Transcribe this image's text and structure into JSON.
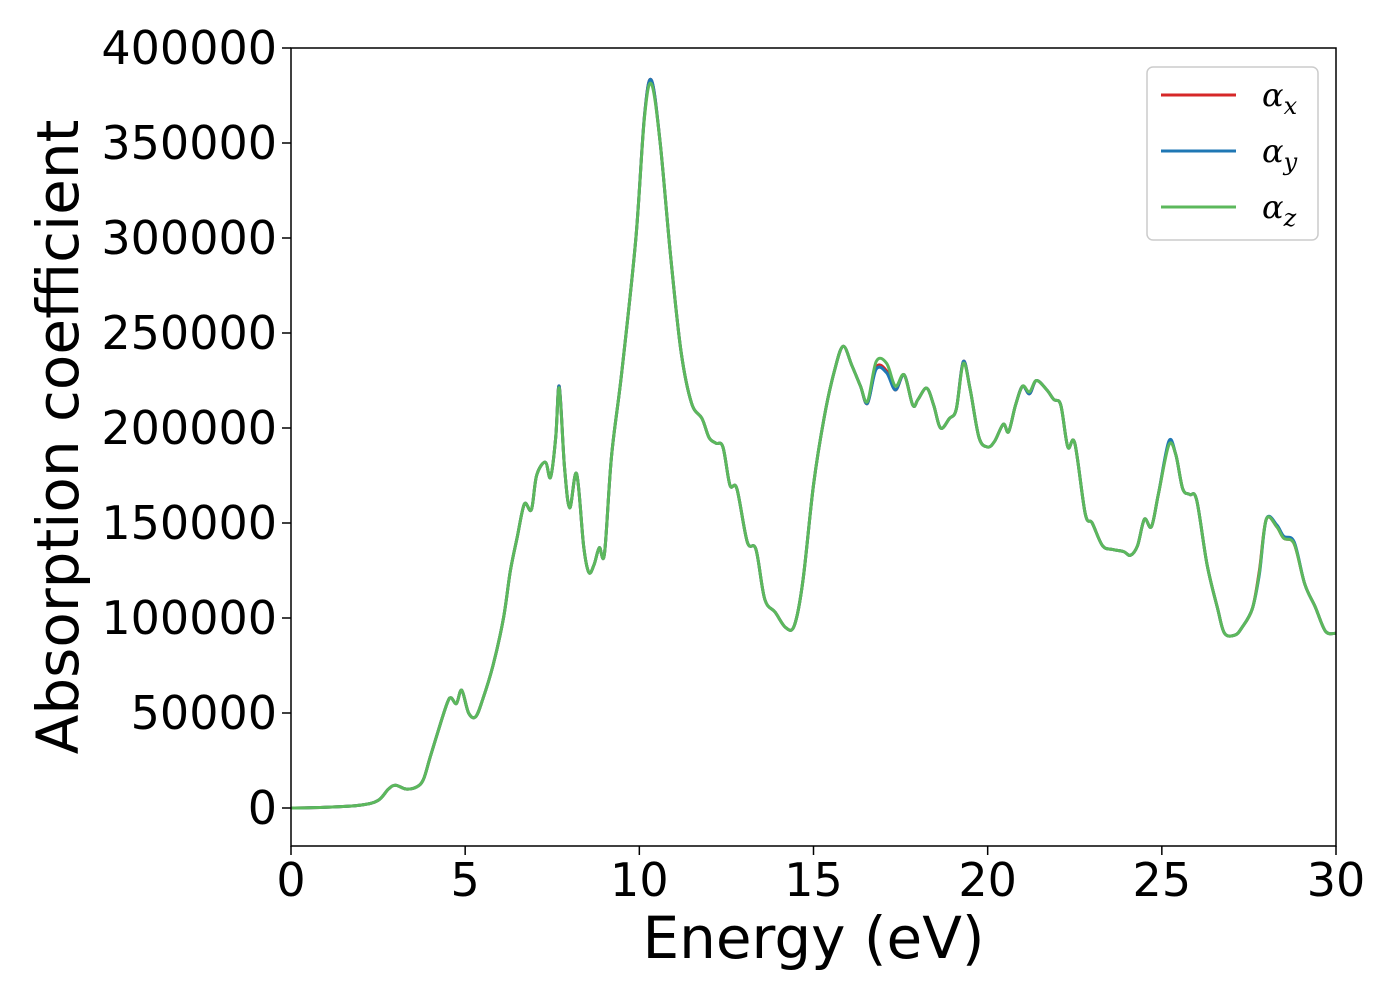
{
  "chart_data": {
    "type": "line",
    "xlabel": "Energy (eV)",
    "ylabel": "Absorption coefficient",
    "xlim": [
      0,
      30
    ],
    "ylim": [
      -20000,
      400000
    ],
    "xticks": [
      "0",
      "5",
      "10",
      "15",
      "20",
      "25",
      "30"
    ],
    "yticks": [
      "0",
      "50000",
      "100000",
      "150000",
      "200000",
      "250000",
      "300000",
      "350000",
      "400000"
    ],
    "grid": false,
    "legend": {
      "position": "top-right"
    },
    "series": [
      {
        "name": "α_x",
        "label_base": "α",
        "label_sub": "x",
        "color": "#d62728",
        "x": [
          0,
          1,
          2,
          2.5,
          2.8,
          3.0,
          3.3,
          3.6,
          3.8,
          4.0,
          4.3,
          4.5,
          4.6,
          4.75,
          4.9,
          5.1,
          5.3,
          5.5,
          5.8,
          6.1,
          6.3,
          6.5,
          6.7,
          6.9,
          7.05,
          7.3,
          7.45,
          7.6,
          7.7,
          7.85,
          8.0,
          8.2,
          8.4,
          8.55,
          8.7,
          8.85,
          9.0,
          9.2,
          9.5,
          9.9,
          10.15,
          10.35,
          10.6,
          10.9,
          11.2,
          11.5,
          11.8,
          12.0,
          12.2,
          12.4,
          12.6,
          12.8,
          13.1,
          13.35,
          13.6,
          13.9,
          14.2,
          14.45,
          14.7,
          15.0,
          15.3,
          15.6,
          15.85,
          16.1,
          16.35,
          16.55,
          16.8,
          17.1,
          17.35,
          17.6,
          17.85,
          18.0,
          18.25,
          18.45,
          18.65,
          18.9,
          19.1,
          19.3,
          19.5,
          19.75,
          20.0,
          20.2,
          20.45,
          20.6,
          20.8,
          21.0,
          21.2,
          21.4,
          21.7,
          21.9,
          22.1,
          22.3,
          22.5,
          22.8,
          23.0,
          23.3,
          23.6,
          23.9,
          24.1,
          24.3,
          24.5,
          24.7,
          24.9,
          25.2,
          25.4,
          25.6,
          25.8,
          26.0,
          26.3,
          26.6,
          26.8,
          27.1,
          27.3,
          27.6,
          27.8,
          28.0,
          28.3,
          28.5,
          28.8,
          29.1,
          29.4,
          29.7,
          30.0
        ],
        "y": [
          0,
          400,
          1500,
          4000,
          10000,
          12000,
          10000,
          11000,
          15000,
          27000,
          45000,
          56000,
          58000,
          55000,
          62000,
          50000,
          48000,
          57000,
          75000,
          100000,
          125000,
          143000,
          160000,
          157000,
          175000,
          182000,
          174000,
          195000,
          222000,
          180000,
          158000,
          176000,
          138000,
          124000,
          128000,
          137000,
          134000,
          185000,
          230000,
          300000,
          365000,
          383000,
          350000,
          290000,
          240000,
          213000,
          205000,
          195000,
          192000,
          190000,
          170000,
          168000,
          140000,
          136000,
          110000,
          103000,
          95000,
          96000,
          120000,
          170000,
          205000,
          230000,
          243000,
          233000,
          222000,
          213000,
          232000,
          230000,
          220000,
          228000,
          212000,
          215000,
          221000,
          212000,
          200000,
          205000,
          210000,
          235000,
          220000,
          195000,
          190000,
          193000,
          202000,
          198000,
          212000,
          222000,
          218000,
          225000,
          220000,
          215000,
          212000,
          190000,
          192000,
          155000,
          150000,
          138000,
          136000,
          135000,
          133000,
          138000,
          152000,
          148000,
          165000,
          192000,
          186000,
          168000,
          165000,
          162000,
          128000,
          105000,
          92000,
          91000,
          95000,
          105000,
          125000,
          152000,
          148000,
          142000,
          139000,
          118000,
          106000,
          93000,
          92000
        ]
      },
      {
        "name": "α_y",
        "label_base": "α",
        "label_sub": "y",
        "color": "#1f77b4",
        "x": [
          0,
          1,
          2,
          2.5,
          2.8,
          3.0,
          3.3,
          3.6,
          3.8,
          4.0,
          4.3,
          4.5,
          4.6,
          4.75,
          4.9,
          5.1,
          5.3,
          5.5,
          5.8,
          6.1,
          6.3,
          6.5,
          6.7,
          6.9,
          7.05,
          7.3,
          7.45,
          7.6,
          7.7,
          7.85,
          8.0,
          8.2,
          8.4,
          8.55,
          8.7,
          8.85,
          9.0,
          9.2,
          9.5,
          9.9,
          10.15,
          10.35,
          10.6,
          10.9,
          11.2,
          11.5,
          11.8,
          12.0,
          12.2,
          12.4,
          12.6,
          12.8,
          13.1,
          13.35,
          13.6,
          13.9,
          14.2,
          14.45,
          14.7,
          15.0,
          15.3,
          15.6,
          15.85,
          16.1,
          16.35,
          16.55,
          16.8,
          17.1,
          17.35,
          17.6,
          17.85,
          18.0,
          18.25,
          18.45,
          18.65,
          18.9,
          19.1,
          19.3,
          19.5,
          19.75,
          20.0,
          20.2,
          20.45,
          20.6,
          20.8,
          21.0,
          21.2,
          21.4,
          21.7,
          21.9,
          22.1,
          22.3,
          22.5,
          22.8,
          23.0,
          23.3,
          23.6,
          23.9,
          24.1,
          24.3,
          24.5,
          24.7,
          24.9,
          25.2,
          25.4,
          25.6,
          25.8,
          26.0,
          26.3,
          26.6,
          26.8,
          27.1,
          27.3,
          27.6,
          27.8,
          28.0,
          28.3,
          28.5,
          28.8,
          29.1,
          29.4,
          29.7,
          30.0
        ],
        "y": [
          0,
          400,
          1500,
          4000,
          10000,
          12000,
          10000,
          11000,
          15000,
          27000,
          45000,
          56000,
          58000,
          55000,
          62000,
          50000,
          48000,
          57000,
          75000,
          100000,
          125000,
          143000,
          160000,
          157000,
          175000,
          182000,
          174000,
          195000,
          222000,
          180000,
          158000,
          176000,
          138000,
          124000,
          128000,
          137000,
          134000,
          185000,
          230000,
          300000,
          365000,
          383000,
          350000,
          290000,
          240000,
          213000,
          205000,
          195000,
          192000,
          190000,
          170000,
          168000,
          140000,
          136000,
          110000,
          103000,
          95000,
          96000,
          120000,
          170000,
          205000,
          230000,
          243000,
          233000,
          222000,
          213000,
          231000,
          229000,
          220000,
          228000,
          212000,
          215000,
          221000,
          212000,
          200000,
          205000,
          210000,
          235000,
          220000,
          195000,
          190000,
          193000,
          202000,
          198000,
          212000,
          222000,
          218000,
          225000,
          220000,
          215000,
          212000,
          190000,
          192000,
          155000,
          150000,
          138000,
          136000,
          135000,
          133000,
          138000,
          152000,
          148000,
          165000,
          193000,
          186000,
          168000,
          165000,
          162000,
          128000,
          105000,
          92000,
          91000,
          95000,
          105000,
          123000,
          152000,
          149000,
          143000,
          140000,
          118000,
          106000,
          93000,
          92000
        ]
      },
      {
        "name": "α_z",
        "label_base": "α",
        "label_sub": "z",
        "color": "#5cb85c",
        "x": [
          0,
          1,
          2,
          2.5,
          2.8,
          3.0,
          3.3,
          3.6,
          3.8,
          4.0,
          4.3,
          4.5,
          4.6,
          4.75,
          4.9,
          5.1,
          5.3,
          5.5,
          5.8,
          6.1,
          6.3,
          6.5,
          6.7,
          6.9,
          7.05,
          7.3,
          7.45,
          7.6,
          7.7,
          7.85,
          8.0,
          8.2,
          8.4,
          8.55,
          8.7,
          8.85,
          9.0,
          9.2,
          9.5,
          9.9,
          10.15,
          10.35,
          10.6,
          10.9,
          11.2,
          11.5,
          11.8,
          12.0,
          12.2,
          12.4,
          12.6,
          12.8,
          13.1,
          13.35,
          13.6,
          13.9,
          14.2,
          14.45,
          14.7,
          15.0,
          15.3,
          15.6,
          15.85,
          16.1,
          16.35,
          16.55,
          16.8,
          17.1,
          17.35,
          17.6,
          17.85,
          18.0,
          18.25,
          18.45,
          18.65,
          18.9,
          19.1,
          19.3,
          19.5,
          19.75,
          20.0,
          20.2,
          20.45,
          20.6,
          20.8,
          21.0,
          21.2,
          21.4,
          21.7,
          21.9,
          22.1,
          22.3,
          22.5,
          22.8,
          23.0,
          23.3,
          23.6,
          23.9,
          24.1,
          24.3,
          24.5,
          24.7,
          24.9,
          25.2,
          25.4,
          25.6,
          25.8,
          26.0,
          26.3,
          26.6,
          26.8,
          27.1,
          27.3,
          27.6,
          27.8,
          28.0,
          28.3,
          28.5,
          28.8,
          29.1,
          29.4,
          29.7,
          30.0
        ],
        "y": [
          0,
          400,
          1500,
          4000,
          10000,
          12000,
          10000,
          11000,
          15000,
          27000,
          45000,
          56000,
          58000,
          55000,
          62000,
          50000,
          48000,
          57000,
          75000,
          100000,
          125000,
          143000,
          160000,
          157000,
          175000,
          182000,
          174000,
          195000,
          221000,
          180000,
          158000,
          176000,
          138000,
          124000,
          128000,
          137000,
          134000,
          185000,
          230000,
          300000,
          364000,
          381000,
          350000,
          290000,
          240000,
          213000,
          205000,
          195000,
          192000,
          190000,
          170000,
          168000,
          140000,
          136000,
          110000,
          103000,
          95000,
          96000,
          120000,
          170000,
          205000,
          230000,
          243000,
          233000,
          222000,
          214000,
          235000,
          234000,
          222000,
          228000,
          212000,
          215000,
          221000,
          212000,
          200000,
          205000,
          210000,
          234000,
          220000,
          195000,
          190000,
          193000,
          202000,
          198000,
          212000,
          222000,
          219000,
          225000,
          220000,
          215000,
          212000,
          190000,
          192000,
          155000,
          150000,
          138000,
          136000,
          135000,
          133000,
          138000,
          152000,
          148000,
          165000,
          191000,
          186000,
          168000,
          165000,
          162000,
          128000,
          105000,
          92000,
          91000,
          95000,
          105000,
          124000,
          152000,
          148000,
          142000,
          139000,
          118000,
          106000,
          93000,
          92000
        ]
      }
    ]
  }
}
